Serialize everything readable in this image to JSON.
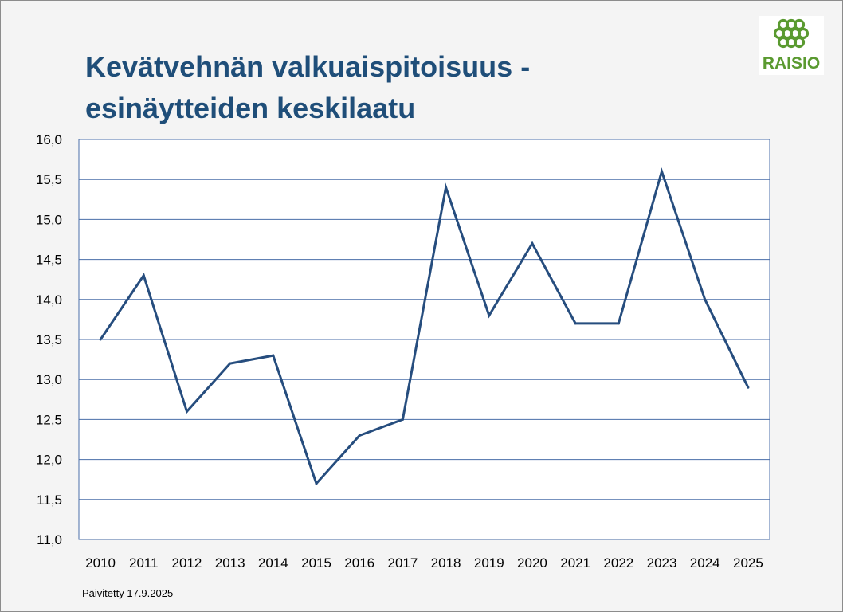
{
  "title_line1": "Kevätvehnän valkuaispitoisuus -",
  "title_line2": "esinäytteiden keskilaatu",
  "logo": {
    "text": "RAISIO",
    "icon": "raisio-grain-logo-icon",
    "color": "#5a9a30"
  },
  "footnote": "Päivitetty 17.9.2025",
  "colors": {
    "line": "#264d7e",
    "grid": "#4a6ea8",
    "title": "#1f4e79"
  },
  "chart_data": {
    "type": "line",
    "title": "Kevätvehnän valkuaispitoisuus - esinäytteiden keskilaatu",
    "xlabel": "",
    "ylabel": "",
    "categories": [
      "2010",
      "2011",
      "2012",
      "2013",
      "2014",
      "2015",
      "2016",
      "2017",
      "2018",
      "2019",
      "2020",
      "2021",
      "2022",
      "2023",
      "2024",
      "2025"
    ],
    "series": [
      {
        "values": [
          13.5,
          14.3,
          12.6,
          13.2,
          13.3,
          11.7,
          12.3,
          12.5,
          15.4,
          13.8,
          14.7,
          13.7,
          13.7,
          15.6,
          14.0,
          12.9
        ]
      }
    ],
    "ylim": [
      11.0,
      16.0
    ],
    "yticks": [
      "11,0",
      "11,5",
      "12,0",
      "12,5",
      "13,0",
      "13,5",
      "14,0",
      "14,5",
      "15,0",
      "15,5",
      "16,0"
    ],
    "grid": "horizontal",
    "legend": "none"
  }
}
